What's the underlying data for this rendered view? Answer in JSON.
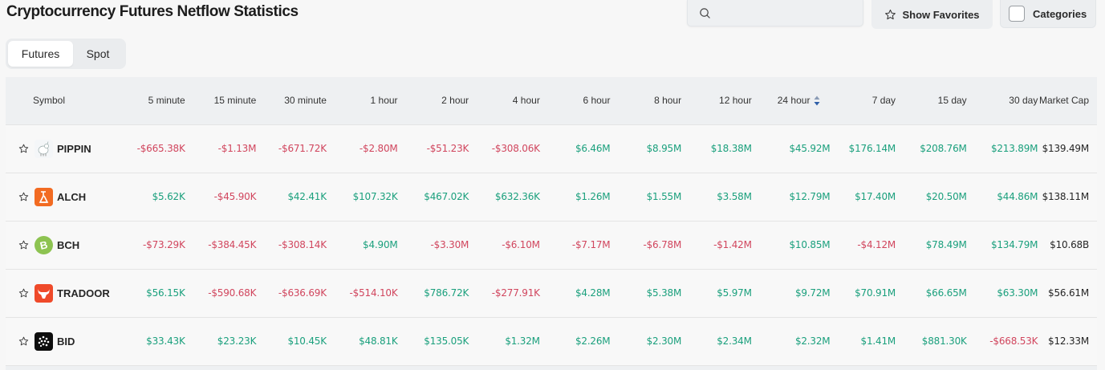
{
  "page": {
    "title": "Cryptocurrency Futures Netflow Statistics"
  },
  "toolbar": {
    "search_placeholder": "",
    "search_value": "",
    "show_favorites_label": "Show Favorites",
    "categories_label": "Categories"
  },
  "tabs": [
    {
      "label": "Futures",
      "active": true
    },
    {
      "label": "Spot",
      "active": false
    }
  ],
  "table": {
    "sorted_column": "24 hour",
    "columns": [
      "Symbol",
      "5 minute",
      "15 minute",
      "30 minute",
      "1 hour",
      "2 hour",
      "4 hour",
      "6 hour",
      "8 hour",
      "12 hour",
      "24 hour",
      "7 day",
      "15 day",
      "30 day",
      "Market Cap"
    ],
    "rows": [
      {
        "symbol": "PIPPIN",
        "icon": "pippin-unicorn-icon",
        "values": [
          "-$665.38K",
          "-$1.13M",
          "-$671.72K",
          "-$2.80M",
          "-$51.23K",
          "-$308.06K",
          "$6.46M",
          "$8.95M",
          "$18.38M",
          "$45.92M",
          "$176.14M",
          "$208.76M",
          "$213.89M"
        ],
        "market_cap": "$139.49M"
      },
      {
        "symbol": "ALCH",
        "icon": "alch-orange-icon",
        "values": [
          "$5.62K",
          "-$45.90K",
          "$42.41K",
          "$107.32K",
          "$467.02K",
          "$632.36K",
          "$1.26M",
          "$1.55M",
          "$3.58M",
          "$12.79M",
          "$17.40M",
          "$20.50M",
          "$44.86M"
        ],
        "market_cap": "$138.11M"
      },
      {
        "symbol": "BCH",
        "icon": "bitcoin-cash-icon",
        "values": [
          "-$73.29K",
          "-$384.45K",
          "-$308.14K",
          "$4.90M",
          "-$3.30M",
          "-$6.10M",
          "-$7.17M",
          "-$6.78M",
          "-$1.42M",
          "$10.85M",
          "-$4.12M",
          "$78.49M",
          "$134.79M"
        ],
        "market_cap": "$10.68B"
      },
      {
        "symbol": "TRADOOR",
        "icon": "tradoor-bull-icon",
        "values": [
          "$56.15K",
          "-$590.68K",
          "-$636.69K",
          "-$514.10K",
          "$786.72K",
          "-$277.91K",
          "$4.28M",
          "$5.38M",
          "$5.97M",
          "$9.72M",
          "$70.91M",
          "$66.65M",
          "$63.30M"
        ],
        "market_cap": "$56.61M"
      },
      {
        "symbol": "BID",
        "icon": "bid-dots-icon",
        "values": [
          "$33.43K",
          "$23.23K",
          "$10.45K",
          "$48.81K",
          "$135.05K",
          "$1.32M",
          "$2.26M",
          "$2.30M",
          "$2.34M",
          "$2.32M",
          "$1.41M",
          "$881.30K",
          "-$668.53K"
        ],
        "market_cap": "$12.33M"
      }
    ]
  },
  "colors": {
    "positive": "#1ba07d",
    "negative": "#d1465e",
    "sort_active": "#2f5fa8",
    "header_bg": "#eef0f2",
    "page_bg": "#f7f7f7"
  }
}
